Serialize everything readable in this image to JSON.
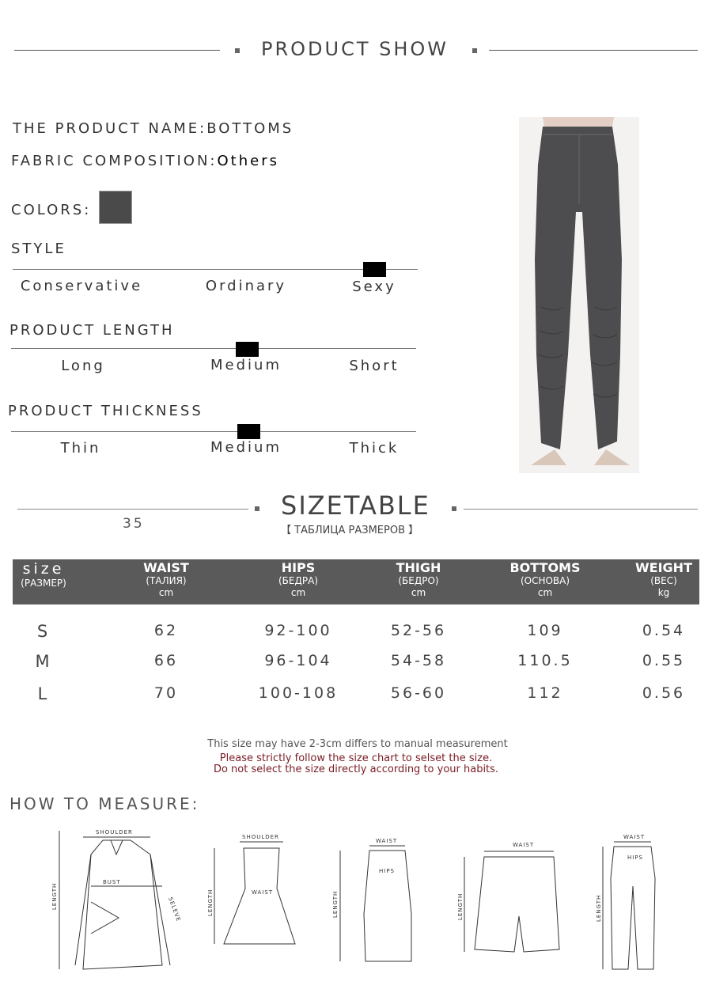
{
  "header": {
    "title": "PRODUCT SHOW"
  },
  "product": {
    "name_label": "THE PRODUCT NAME:",
    "name": "BOTTOMS",
    "fabric_label": "FABRIC COMPOSITION:",
    "fabric": "Others",
    "colors_label": "COLORS:",
    "color_swatch": "#4a4a4a"
  },
  "style": {
    "title": "STYLE",
    "options": [
      "Conservative",
      "Ordinary",
      "Sexy"
    ],
    "selected": "Sexy"
  },
  "length": {
    "title": "PRODUCT LENGTH",
    "options": [
      "Long",
      "Medium",
      "Short"
    ],
    "selected": "Medium"
  },
  "thickness": {
    "title": "PRODUCT THICKNESS",
    "options": [
      "Thin",
      "Medium",
      "Thick"
    ],
    "selected": "Medium"
  },
  "sizetable": {
    "title": "SIZETABLE",
    "subtitle": "【 ТАБЛИЦА РАЗМЕРОВ 】",
    "number": "35",
    "header_bg": "#5a5a5a",
    "columns": [
      {
        "name": "size",
        "ru": "(РАЗМЕР)",
        "unit": ""
      },
      {
        "name": "WAIST",
        "ru": "(ТАЛИЯ)",
        "unit": "cm"
      },
      {
        "name": "HIPS",
        "ru": "(БЕДРА)",
        "unit": "cm"
      },
      {
        "name": "THIGH",
        "ru": "(БЕДРО)",
        "unit": "cm"
      },
      {
        "name": "BOTTOMS",
        "ru": "(ОСНОВА)",
        "unit": "cm"
      },
      {
        "name": "WEIGHT",
        "ru": "(ВЕС)",
        "unit": "kg"
      }
    ],
    "rows": [
      [
        "S",
        "62",
        "92-100",
        "52-56",
        "109",
        "0.54"
      ],
      [
        "M",
        "66",
        "96-104",
        "54-58",
        "110.5",
        "0.55"
      ],
      [
        "L",
        "70",
        "100-108",
        "56-60",
        "112",
        "0.56"
      ]
    ]
  },
  "notes": {
    "line1": "This size may have 2-3cm differs to manual measurement",
    "line2": "Please strictly follow the size chart to selset the size.",
    "line3": "Do not select the size directly according to your habits.",
    "warn_color": "#7a1c24"
  },
  "measure": {
    "title": "HOW TO MEASURE:",
    "labels": {
      "shoulder": "SHOULDER",
      "bust": "BUST",
      "length": "LENGTH",
      "seleve": "SELEVE",
      "waist": "WAIST",
      "hips": "HIPS"
    }
  }
}
